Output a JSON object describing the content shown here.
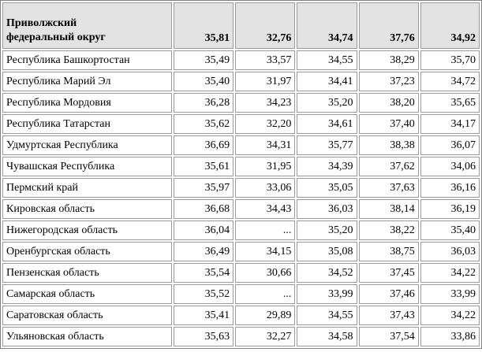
{
  "header": {
    "name_line1": "Приволжский",
    "name_line2": "федеральный округ",
    "values": [
      "35,81",
      "32,76",
      "34,74",
      "37,76",
      "34,92"
    ]
  },
  "rows": [
    {
      "name": "Республика Башкортостан",
      "values": [
        "35,49",
        "33,57",
        "34,55",
        "38,29",
        "35,70"
      ]
    },
    {
      "name": "Республика Марий Эл",
      "values": [
        "35,40",
        "31,97",
        "34,41",
        "37,23",
        "34,72"
      ]
    },
    {
      "name": "Республика Мордовия",
      "values": [
        "36,28",
        "34,23",
        "35,20",
        "38,20",
        "35,65"
      ]
    },
    {
      "name": "Республика Татарстан",
      "values": [
        "35,62",
        "32,20",
        "34,61",
        "37,40",
        "34,17"
      ]
    },
    {
      "name": "Удмуртская Республика",
      "values": [
        "36,69",
        "34,31",
        "35,77",
        "38,38",
        "36,07"
      ]
    },
    {
      "name": "Чувашская Республика",
      "values": [
        "35,61",
        "31,95",
        "34,39",
        "37,62",
        "34,06"
      ]
    },
    {
      "name": "Пермский край",
      "values": [
        "35,97",
        "33,06",
        "35,05",
        "37,63",
        "36,16"
      ]
    },
    {
      "name": "Кировская область",
      "values": [
        "36,68",
        "34,43",
        "36,03",
        "38,14",
        "36,19"
      ]
    },
    {
      "name": "Нижегородская область",
      "values": [
        "36,04",
        "...",
        "35,20",
        "38,22",
        "35,40"
      ]
    },
    {
      "name": "Оренбургская область",
      "values": [
        "36,49",
        "34,15",
        "35,08",
        "38,75",
        "36,03"
      ]
    },
    {
      "name": "Пензенская область",
      "values": [
        "35,54",
        "30,66",
        "34,52",
        "37,45",
        "34,22"
      ]
    },
    {
      "name": "Самарская область",
      "values": [
        "35,52",
        "...",
        "33,99",
        "37,46",
        "33,99"
      ]
    },
    {
      "name": "Саратовская область",
      "values": [
        "35,41",
        "29,89",
        "34,55",
        "37,43",
        "34,22"
      ]
    },
    {
      "name": "Ульяновская область",
      "values": [
        "35,63",
        "32,27",
        "34,58",
        "37,54",
        "33,86"
      ]
    }
  ]
}
